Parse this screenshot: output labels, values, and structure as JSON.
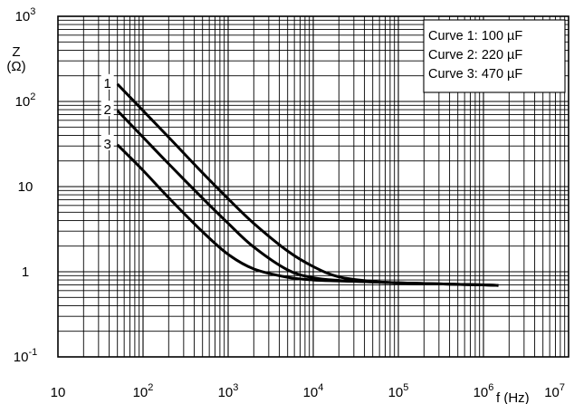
{
  "chart_data": {
    "type": "line",
    "xscale": "log",
    "yscale": "log",
    "xlim": [
      10,
      10000000
    ],
    "ylim": [
      0.1,
      1000
    ],
    "grid": true,
    "xlabel": "f (Hz)",
    "ylabel_line1": "Z",
    "ylabel_line2": "(Ω)",
    "x_ticks": [
      {
        "value": 10,
        "base": "10",
        "exp": ""
      },
      {
        "value": 100,
        "base": "10",
        "exp": "2"
      },
      {
        "value": 1000,
        "base": "10",
        "exp": "3"
      },
      {
        "value": 10000,
        "base": "10",
        "exp": "4"
      },
      {
        "value": 100000,
        "base": "10",
        "exp": "5"
      },
      {
        "value": 1000000,
        "base": "10",
        "exp": "6"
      },
      {
        "value": 10000000,
        "base": "10",
        "exp": "7"
      }
    ],
    "y_ticks": [
      {
        "value": 1000,
        "base": "10",
        "exp": "3"
      },
      {
        "value": 100,
        "base": "10",
        "exp": "2"
      },
      {
        "value": 10,
        "base": "10",
        "exp": ""
      },
      {
        "value": 1,
        "base": "1",
        "exp": ""
      },
      {
        "value": 0.1,
        "base": "10",
        "exp": "-1"
      }
    ],
    "legend": {
      "position": "top-right",
      "entries": [
        "Curve 1: 100 µF",
        "Curve 2: 220 µF",
        "Curve 3: 470 µF"
      ]
    },
    "series": [
      {
        "label": "1",
        "x": [
          50,
          100,
          200,
          500,
          1000,
          2000,
          5000,
          10000,
          20000,
          50000,
          100000,
          300000,
          1000000,
          1500000
        ],
        "y": [
          160,
          78,
          38,
          14.5,
          7.2,
          3.7,
          1.75,
          1.15,
          0.87,
          0.77,
          0.74,
          0.72,
          0.7,
          0.69
        ]
      },
      {
        "label": "2",
        "x": [
          50,
          100,
          200,
          500,
          1000,
          2000,
          5000,
          10000,
          20000,
          50000,
          100000,
          300000,
          1000000,
          1500000
        ],
        "y": [
          78,
          38,
          18.5,
          7.3,
          3.7,
          1.95,
          1.05,
          0.85,
          0.79,
          0.76,
          0.74,
          0.72,
          0.7,
          0.69
        ]
      },
      {
        "label": "3",
        "x": [
          50,
          100,
          200,
          500,
          1000,
          2000,
          5000,
          10000,
          20000,
          50000,
          100000,
          300000,
          1000000,
          1500000
        ],
        "y": [
          31,
          15.5,
          7.4,
          2.95,
          1.6,
          1.08,
          0.86,
          0.8,
          0.78,
          0.76,
          0.74,
          0.72,
          0.7,
          0.69
        ]
      }
    ]
  }
}
